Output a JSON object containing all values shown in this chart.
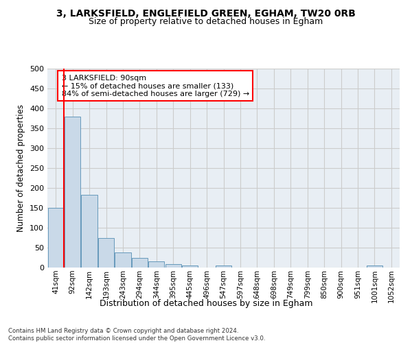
{
  "title_line1": "3, LARKSFIELD, ENGLEFIELD GREEN, EGHAM, TW20 0RB",
  "title_line2": "Size of property relative to detached houses in Egham",
  "xlabel": "Distribution of detached houses by size in Egham",
  "ylabel": "Number of detached properties",
  "bin_labels": [
    "41sqm",
    "92sqm",
    "142sqm",
    "193sqm",
    "243sqm",
    "294sqm",
    "344sqm",
    "395sqm",
    "445sqm",
    "496sqm",
    "547sqm",
    "597sqm",
    "648sqm",
    "698sqm",
    "749sqm",
    "799sqm",
    "850sqm",
    "900sqm",
    "951sqm",
    "1001sqm",
    "1052sqm"
  ],
  "bar_values": [
    150,
    380,
    183,
    75,
    38,
    25,
    15,
    8,
    6,
    0,
    5,
    0,
    0,
    0,
    0,
    0,
    0,
    0,
    0,
    5,
    0
  ],
  "bar_color": "#c9d9e8",
  "bar_edge_color": "#6699bb",
  "annotation_text": "3 LARKSFIELD: 90sqm\n← 15% of detached houses are smaller (133)\n84% of semi-detached houses are larger (729) →",
  "annotation_box_color": "white",
  "annotation_box_edge": "red",
  "vline_color": "red",
  "grid_color": "#cccccc",
  "footer_text": "Contains HM Land Registry data © Crown copyright and database right 2024.\nContains public sector information licensed under the Open Government Licence v3.0.",
  "ylim": [
    0,
    500
  ],
  "yticks": [
    0,
    50,
    100,
    150,
    200,
    250,
    300,
    350,
    400,
    450,
    500
  ],
  "bg_color": "#e8eef4"
}
